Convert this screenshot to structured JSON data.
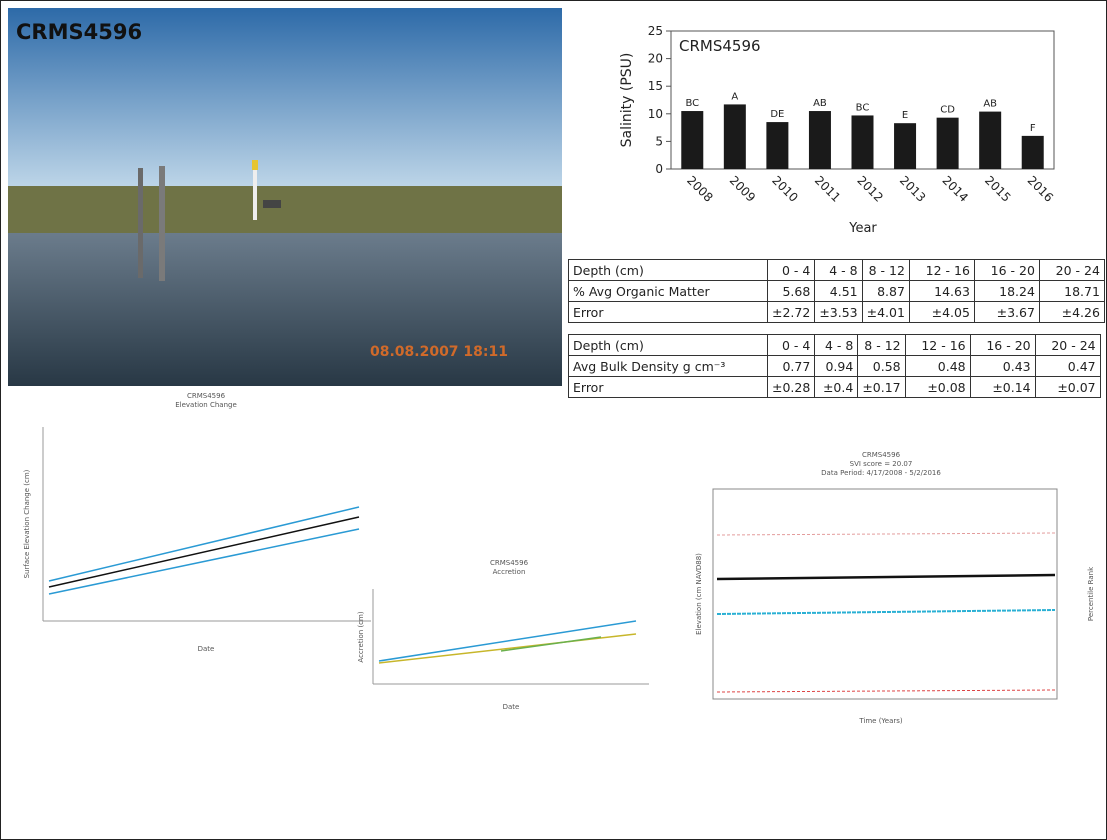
{
  "photo": {
    "label": "CRMS4596",
    "timestamp": "08.08.2007 18:11"
  },
  "chart_data": {
    "type": "bar",
    "title": "CRMS4596",
    "y_label": "Salinity (PSU)",
    "x_label": "Year",
    "categories": [
      "2008",
      "2009",
      "2010",
      "2011",
      "2012",
      "2013",
      "2014",
      "2015",
      "2016"
    ],
    "values": [
      10.5,
      11.7,
      8.5,
      10.5,
      9.7,
      8.3,
      9.3,
      10.4,
      6.0
    ],
    "letters": [
      "BC",
      "A",
      "DE",
      "AB",
      "BC",
      "E",
      "CD",
      "AB",
      "F"
    ],
    "color": "#1a1a1a",
    "ylim": [
      0,
      25
    ],
    "yticks": [
      0,
      5,
      10,
      15,
      20,
      25
    ]
  },
  "organic_table": {
    "rows": [
      [
        "Depth (cm)",
        "0 - 4",
        "4 - 8",
        "8 - 12",
        "12 - 16",
        "16 - 20",
        "20 - 24"
      ],
      [
        "% Avg Organic Matter",
        5.68,
        4.51,
        8.87,
        14.63,
        18.24,
        18.71
      ],
      [
        "Error",
        "±2.72",
        "±3.53",
        "±4.01",
        "±4.05",
        "±3.67",
        "±4.26"
      ]
    ]
  },
  "density_table": {
    "rows": [
      [
        "Depth (cm)",
        "0 - 4",
        "4 - 8",
        "8 - 12",
        "12 - 16",
        "16 - 20",
        "20 - 24"
      ],
      [
        "Avg Bulk Density g cm⁻³",
        0.77,
        0.94,
        0.58,
        0.48,
        0.43,
        0.47
      ],
      [
        "Error",
        "±0.28",
        "±0.4",
        "±0.17",
        "±0.08",
        "±0.14",
        "±0.07"
      ]
    ]
  },
  "elevation_chart": {
    "title": "CRMS4596",
    "subtitle": "Elevation Change",
    "x_label": "Date",
    "y_label": "Surface Elevation Change (cm)"
  },
  "accretion_chart": {
    "title": "CRMS4596",
    "subtitle": "Accretion",
    "x_label": "Date",
    "y_label": "Accretion (cm)"
  },
  "svi_chart": {
    "title": "CRMS4596",
    "subtitle": "SVI score = 20.07",
    "period": "Data Period: 4/17/2008 - 5/2/2016",
    "x_label": "Time (Years)",
    "y_label": "Elevation (cm NAVD88)",
    "y2_label": "Percentile Rank"
  }
}
